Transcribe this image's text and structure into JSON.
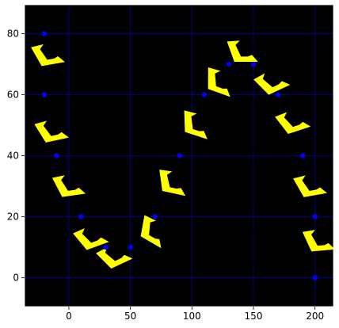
{
  "chart_data": {
    "type": "scatter",
    "title": "",
    "xlabel": "",
    "ylabel": "",
    "xlim": [
      -36,
      215
    ],
    "ylim": [
      -9.5,
      89.5
    ],
    "xticks": [
      0,
      50,
      100,
      150,
      200
    ],
    "yticks": [
      0,
      20,
      40,
      60,
      80
    ],
    "grid": true,
    "colors": {
      "background": "#000000",
      "grid": "#0000aa",
      "points": "#0000ff",
      "markers": "#ffff00",
      "frame": "#ffffff"
    },
    "series": [
      {
        "points": [
          {
            "x": -20,
            "y": 80
          },
          {
            "x": -20,
            "y": 60
          },
          {
            "x": -10,
            "y": 40
          },
          {
            "x": 10,
            "y": 20
          },
          {
            "x": 30,
            "y": 10
          },
          {
            "x": 50,
            "y": 10
          },
          {
            "x": 70,
            "y": 20
          },
          {
            "x": 90,
            "y": 40
          },
          {
            "x": 110,
            "y": 60
          },
          {
            "x": 130,
            "y": 70
          },
          {
            "x": 150,
            "y": 70
          },
          {
            "x": 170,
            "y": 60
          },
          {
            "x": 190,
            "y": 40
          },
          {
            "x": 200,
            "y": 20
          },
          {
            "x": 200,
            "y": 0
          }
        ]
      },
      {
        "marker": "bracket-glyph",
        "points": [
          {
            "x": -17,
            "y": 73
          },
          {
            "x": -14,
            "y": 48
          },
          {
            "x": 0,
            "y": 30
          },
          {
            "x": 18,
            "y": 13
          },
          {
            "x": 37,
            "y": 7
          },
          {
            "x": 68,
            "y": 15
          },
          {
            "x": 84,
            "y": 31
          },
          {
            "x": 103,
            "y": 50
          },
          {
            "x": 122,
            "y": 64
          },
          {
            "x": 141,
            "y": 74
          },
          {
            "x": 165,
            "y": 64
          },
          {
            "x": 182,
            "y": 51
          },
          {
            "x": 196,
            "y": 30
          },
          {
            "x": 203,
            "y": 12
          }
        ],
        "angles": [
          -10,
          -12,
          -8,
          -20,
          -25,
          30,
          12,
          18,
          20,
          0,
          -25,
          -18,
          -10,
          -5
        ]
      }
    ]
  }
}
